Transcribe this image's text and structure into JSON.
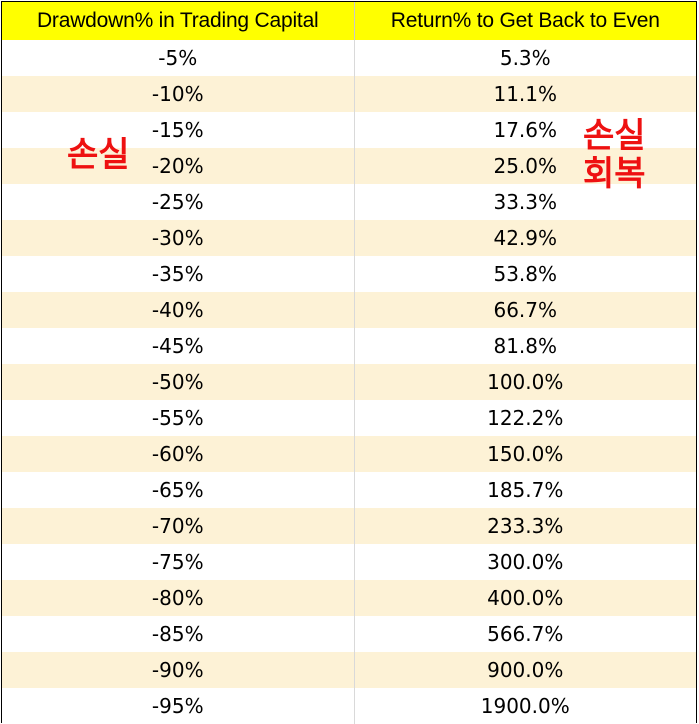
{
  "table": {
    "headers": [
      "Drawdown% in Trading Capital",
      "Return% to Get Back to Even"
    ],
    "rows": [
      [
        "-5%",
        "5.3%"
      ],
      [
        "-10%",
        "11.1%"
      ],
      [
        "-15%",
        "17.6%"
      ],
      [
        "-20%",
        "25.0%"
      ],
      [
        "-25%",
        "33.3%"
      ],
      [
        "-30%",
        "42.9%"
      ],
      [
        "-35%",
        "53.8%"
      ],
      [
        "-40%",
        "66.7%"
      ],
      [
        "-45%",
        "81.8%"
      ],
      [
        "-50%",
        "100.0%"
      ],
      [
        "-55%",
        "122.2%"
      ],
      [
        "-60%",
        "150.0%"
      ],
      [
        "-65%",
        "185.7%"
      ],
      [
        "-70%",
        "233.3%"
      ],
      [
        "-75%",
        "300.0%"
      ],
      [
        "-80%",
        "400.0%"
      ],
      [
        "-85%",
        "566.7%"
      ],
      [
        "-90%",
        "900.0%"
      ],
      [
        "-95%",
        "1900.0%"
      ]
    ]
  },
  "annotations": {
    "left": "손실",
    "right_line1": "손실",
    "right_line2": "회복"
  },
  "colors": {
    "header_bg": "#ffff00",
    "band_bg": "#fdf2d6",
    "annotation": "#ee1111"
  }
}
